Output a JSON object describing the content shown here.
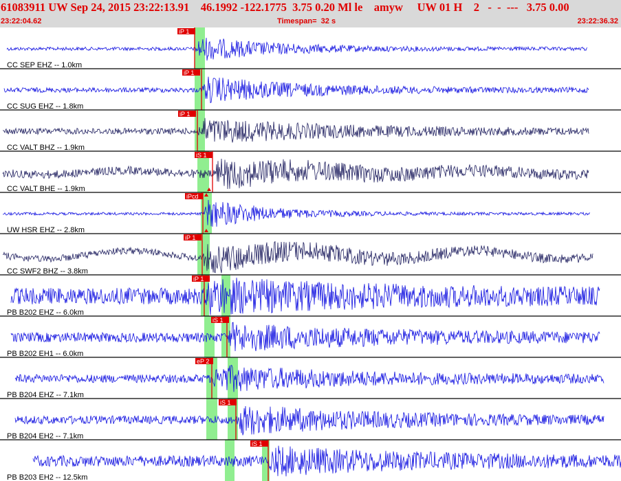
{
  "header": {
    "title": "61083911 UW Sep 24, 2015 23:22:13.91    46.1992 -122.1775  3.75 0.20 Ml le    amyw     UW 01 H    2   -  -  ---   3.75 0.00",
    "start_time": "23:22:04.62",
    "timespan": "Timespan=  32 s",
    "end_time": "23:22:36.32"
  },
  "colors": {
    "trace_blue": "#1010e0",
    "trace_dark": "#202060",
    "pick": "#e00000",
    "window": "#90ee90",
    "header_bg": "#d9d9d9",
    "header_text": "#e00000"
  },
  "channels": [
    {
      "label": "CC SEP EHZ -- 1.0km",
      "pick": "iP 1",
      "color": "blue"
    },
    {
      "label": "CC SUG EHZ -- 1.8km",
      "pick": "iP 1",
      "color": "blue"
    },
    {
      "label": "CC VALT BHZ -- 1.9km",
      "pick": "iP 1",
      "color": "dark"
    },
    {
      "label": "CC VALT BHE -- 1.9km",
      "pick": "iS 1",
      "color": "dark"
    },
    {
      "label": "UW HSR EHZ -- 2.8km",
      "pick": "iPcd",
      "color": "blue"
    },
    {
      "label": "CC SWF2 BHZ -- 3.8km",
      "pick": "iP 1",
      "color": "dark"
    },
    {
      "label": "PB B202 EHZ -- 6.0km",
      "pick": "iP 1",
      "color": "blue"
    },
    {
      "label": "PB B202 EH1 -- 6.0km",
      "pick": "iS 1",
      "color": "blue"
    },
    {
      "label": "PB B204 EHZ -- 7.1km",
      "pick": "eP 2",
      "color": "blue"
    },
    {
      "label": "PB B204 EH2 -- 7.1km",
      "pick": "iS 1",
      "color": "blue"
    },
    {
      "label": "PB B203 EH2 -- 12.5km",
      "pick": "iS 1",
      "color": "blue"
    }
  ]
}
